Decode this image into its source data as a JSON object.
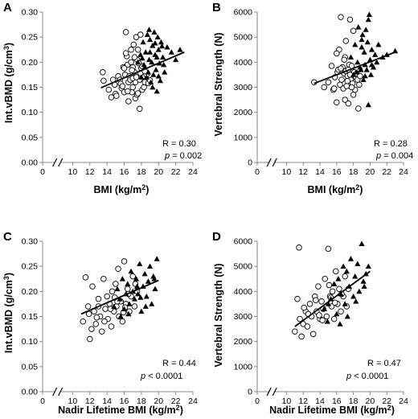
{
  "panels": [
    {
      "letter": "A",
      "ylabel_main": "Int.vBMD  (g/cm",
      "ylabel_sup": "3",
      "ylabel_end": ")",
      "xlabel_main": "BMI (kg/m",
      "xlabel_sup": "2",
      "xlabel_end": ")",
      "r_text": "R = 0.30",
      "p_symbol": "p",
      "p_text": " = 0.002",
      "y_ticks": [
        "0.00",
        "0.05",
        "0.10",
        "0.15",
        "0.20",
        "0.25",
        "0.30"
      ],
      "x_ticks": [
        "0",
        "10",
        "12",
        "14",
        "16",
        "18",
        "20",
        "22",
        "24"
      ]
    },
    {
      "letter": "B",
      "ylabel_main": "Vertebral Strength (N)",
      "ylabel_sup": "",
      "ylabel_end": "",
      "xlabel_main": "BMI (kg/m",
      "xlabel_sup": "2",
      "xlabel_end": ")",
      "r_text": "R = 0.28",
      "p_symbol": "p",
      "p_text": " = 0.004",
      "y_ticks": [
        "0",
        "1000",
        "2000",
        "3000",
        "4000",
        "5000",
        "6000"
      ],
      "x_ticks": [
        "0",
        "10",
        "12",
        "14",
        "16",
        "18",
        "20",
        "22",
        "24"
      ]
    },
    {
      "letter": "C",
      "ylabel_main": "Int.vBMD  (g/cm",
      "ylabel_sup": "3",
      "ylabel_end": ")",
      "xlabel_main": "Nadir Lifetime BMI (kg/m",
      "xlabel_sup": "2",
      "xlabel_end": ")",
      "r_text": "R = 0.44",
      "p_symbol": "p",
      "p_text": " < 0.0001",
      "y_ticks": [
        "0.00",
        "0.05",
        "0.10",
        "0.15",
        "0.20",
        "0.25",
        "0.30"
      ],
      "x_ticks": [
        "0",
        "10",
        "12",
        "14",
        "16",
        "18",
        "20",
        "22",
        "24"
      ]
    },
    {
      "letter": "D",
      "ylabel_main": "Vertebral Strength (N)",
      "ylabel_sup": "",
      "ylabel_end": "",
      "xlabel_main": "Nadir Lifetime BMI (kg/m",
      "xlabel_sup": "2",
      "xlabel_end": ")",
      "r_text": "R = 0.47",
      "p_symbol": "p",
      "p_text": " < 0.0001",
      "y_ticks": [
        "0",
        "1000",
        "2000",
        "3000",
        "4000",
        "5000",
        "6000"
      ],
      "x_ticks": [
        "0",
        "10",
        "12",
        "14",
        "16",
        "18",
        "20",
        "22",
        "24"
      ]
    }
  ],
  "chart_data": [
    {
      "type": "scatter",
      "panel": "A",
      "title": "",
      "xlabel": "BMI (kg/m2)",
      "ylabel": "Int.vBMD  (g/cm3)",
      "xlim": [
        0,
        24
      ],
      "x_axis_break": [
        0,
        10
      ],
      "ylim": [
        0,
        0.3
      ],
      "grid": false,
      "annotation": {
        "R": 0.3,
        "p": "= 0.002"
      },
      "trendline": {
        "x": [
          13.3,
          23.0
        ],
        "y": [
          0.149,
          0.22
        ]
      },
      "series": [
        {
          "marker": "open-circle",
          "x": [
            13.5,
            13.6,
            14.2,
            14.5,
            14.7,
            14.9,
            15.0,
            15.1,
            15.3,
            15.5,
            15.6,
            15.7,
            15.9,
            16.0,
            16.1,
            16.2,
            16.3,
            16.4,
            16.5,
            16.5,
            16.6,
            16.7,
            16.8,
            16.9,
            17.0,
            17.0,
            17.1,
            17.2,
            17.3,
            17.3,
            17.4,
            17.5,
            17.5,
            17.6,
            17.7,
            17.8,
            17.8,
            17.9,
            18.0,
            18.1,
            18.2,
            18.3,
            18.4,
            18.6,
            18.8,
            19.0,
            16.2,
            16.8,
            17.6,
            17.9,
            15.8,
            16.9,
            17.2,
            18.1,
            16.4,
            17.0,
            17.7,
            18.4,
            16.0,
            17.4
          ],
          "y": [
            0.18,
            0.163,
            0.145,
            0.13,
            0.165,
            0.155,
            0.137,
            0.133,
            0.172,
            0.165,
            0.157,
            0.148,
            0.19,
            0.14,
            0.175,
            0.26,
            0.212,
            0.195,
            0.16,
            0.122,
            0.172,
            0.165,
            0.225,
            0.14,
            0.19,
            0.15,
            0.235,
            0.18,
            0.16,
            0.128,
            0.25,
            0.205,
            0.135,
            0.225,
            0.175,
            0.165,
            0.107,
            0.255,
            0.188,
            0.145,
            0.172,
            0.15,
            0.16,
            0.175,
            0.158,
            0.164,
            0.218,
            0.2,
            0.138,
            0.178,
            0.152,
            0.184,
            0.21,
            0.192,
            0.142,
            0.168,
            0.198,
            0.182,
            0.188,
            0.17
          ]
        },
        {
          "marker": "filled-triangle",
          "x": [
            17.6,
            17.9,
            18.0,
            18.2,
            18.3,
            18.5,
            18.6,
            18.7,
            18.8,
            18.9,
            19.0,
            19.1,
            19.2,
            19.3,
            19.4,
            19.5,
            19.6,
            19.7,
            19.8,
            19.9,
            20.0,
            20.1,
            20.2,
            20.3,
            20.5,
            20.7,
            21.0,
            21.5,
            22.0,
            22.5,
            18.4,
            18.9,
            19.3,
            19.6,
            20.0,
            20.4,
            18.1,
            19.0,
            19.8,
            20.6
          ],
          "y": [
            0.2,
            0.215,
            0.17,
            0.24,
            0.195,
            0.22,
            0.17,
            0.255,
            0.18,
            0.265,
            0.22,
            0.16,
            0.2,
            0.233,
            0.175,
            0.26,
            0.215,
            0.185,
            0.142,
            0.25,
            0.225,
            0.198,
            0.163,
            0.24,
            0.21,
            0.18,
            0.23,
            0.22,
            0.205,
            0.225,
            0.19,
            0.205,
            0.15,
            0.238,
            0.172,
            0.232,
            0.208,
            0.245,
            0.21,
            0.195
          ]
        }
      ]
    },
    {
      "type": "scatter",
      "panel": "B",
      "title": "",
      "xlabel": "BMI (kg/m2)",
      "ylabel": "Vertebral Strength (N)",
      "xlim": [
        0,
        24
      ],
      "x_axis_break": [
        0,
        10
      ],
      "ylim": [
        0,
        6000
      ],
      "grid": false,
      "annotation": {
        "R": 0.28,
        "p": "= 0.004"
      },
      "trendline": {
        "x": [
          13.3,
          23.0
        ],
        "y": [
          3150,
          4400
        ]
      },
      "series": [
        {
          "marker": "open-circle",
          "x": [
            13.3,
            14.5,
            15.0,
            15.4,
            15.6,
            15.8,
            16.0,
            16.1,
            16.3,
            16.4,
            16.5,
            16.6,
            16.7,
            16.8,
            16.9,
            17.0,
            17.0,
            17.1,
            17.2,
            17.3,
            17.4,
            17.5,
            17.6,
            17.7,
            17.8,
            17.9,
            18.0,
            18.1,
            18.2,
            18.3,
            18.4,
            18.5,
            18.6,
            18.8,
            16.2,
            16.9,
            17.3,
            17.8,
            15.7,
            16.5,
            17.1,
            17.6,
            18.0,
            16.0,
            17.4,
            18.7
          ],
          "y": [
            3200,
            3000,
            3200,
            3850,
            2900,
            3400,
            2400,
            3600,
            4500,
            3100,
            5800,
            3300,
            3800,
            2950,
            3550,
            4200,
            2500,
            3650,
            3050,
            3450,
            2350,
            3900,
            5700,
            3300,
            3850,
            3150,
            5250,
            3600,
            2900,
            3400,
            3550,
            3300,
            2150,
            3450,
            3700,
            4100,
            3250,
            3000,
            2950,
            3750,
            4850,
            3500,
            2700,
            4350,
            3700,
            3100
          ]
        },
        {
          "marker": "filled-triangle",
          "x": [
            17.7,
            18.0,
            18.2,
            18.4,
            18.6,
            18.8,
            19.0,
            19.1,
            19.2,
            19.3,
            19.4,
            19.5,
            19.6,
            19.7,
            19.8,
            19.9,
            20.0,
            20.1,
            20.2,
            20.4,
            20.6,
            20.8,
            21.0,
            21.5,
            22.0,
            23.0,
            18.5,
            19.0,
            19.4,
            19.8,
            20.2,
            18.9
          ],
          "y": [
            4200,
            3500,
            4700,
            3600,
            5400,
            3800,
            4600,
            5100,
            3300,
            4400,
            3900,
            5300,
            3700,
            4800,
            2300,
            5900,
            4100,
            3500,
            4500,
            3800,
            4300,
            4000,
            4700,
            4200,
            4300,
            4450,
            4000,
            4900,
            3450,
            5700,
            3900,
            3700
          ]
        }
      ]
    },
    {
      "type": "scatter",
      "panel": "C",
      "title": "",
      "xlabel": "Nadir Lifetime BMI (kg/m2)",
      "ylabel": "Int.vBMD  (g/cm3)",
      "xlim": [
        0,
        24
      ],
      "x_axis_break": [
        0,
        10
      ],
      "ylim": [
        0,
        0.3
      ],
      "grid": false,
      "annotation": {
        "R": 0.44,
        "p": "< 0.0001"
      },
      "trendline": {
        "x": [
          11.0,
          20.0
        ],
        "y": [
          0.155,
          0.222
        ]
      },
      "series": [
        {
          "marker": "open-circle",
          "x": [
            11.2,
            11.5,
            11.8,
            12.0,
            12.3,
            12.5,
            12.7,
            13.0,
            13.2,
            13.4,
            13.6,
            13.8,
            14.0,
            14.1,
            14.3,
            14.5,
            14.6,
            14.8,
            15.0,
            15.1,
            15.3,
            15.4,
            15.6,
            15.8,
            16.0,
            16.2,
            16.4,
            16.6,
            16.8,
            17.0,
            17.2,
            17.5,
            12.2,
            13.0,
            13.7,
            14.4,
            15.2,
            15.9,
            16.5,
            17.3,
            11.9,
            12.8,
            14.9,
            16.1
          ],
          "y": [
            0.14,
            0.228,
            0.17,
            0.105,
            0.21,
            0.16,
            0.135,
            0.185,
            0.15,
            0.12,
            0.225,
            0.165,
            0.19,
            0.145,
            0.175,
            0.13,
            0.2,
            0.16,
            0.215,
            0.17,
            0.245,
            0.15,
            0.18,
            0.14,
            0.26,
            0.175,
            0.205,
            0.16,
            0.19,
            0.23,
            0.17,
            0.2,
            0.125,
            0.17,
            0.14,
            0.165,
            0.18,
            0.158,
            0.195,
            0.215,
            0.155,
            0.148,
            0.188,
            0.168
          ]
        },
        {
          "marker": "filled-triangle",
          "x": [
            14.8,
            15.2,
            15.5,
            15.8,
            16.0,
            16.2,
            16.4,
            16.6,
            16.8,
            17.0,
            17.2,
            17.4,
            17.6,
            17.8,
            18.0,
            18.2,
            18.4,
            18.6,
            18.8,
            19.0,
            19.2,
            19.4,
            19.6,
            19.8,
            16.5,
            17.5,
            18.5,
            19.5,
            15.6,
            17.9
          ],
          "y": [
            0.17,
            0.205,
            0.185,
            0.225,
            0.165,
            0.195,
            0.215,
            0.175,
            0.24,
            0.2,
            0.185,
            0.225,
            0.195,
            0.255,
            0.16,
            0.21,
            0.235,
            0.19,
            0.22,
            0.25,
            0.175,
            0.23,
            0.205,
            0.265,
            0.155,
            0.21,
            0.17,
            0.225,
            0.15,
            0.188
          ]
        }
      ]
    },
    {
      "type": "scatter",
      "panel": "D",
      "title": "",
      "xlabel": "Nadir Lifetime BMI (kg/m2)",
      "ylabel": "Vertebral Strength (N)",
      "xlim": [
        0,
        24
      ],
      "x_axis_break": [
        0,
        10
      ],
      "ylim": [
        0,
        6000
      ],
      "grid": false,
      "annotation": {
        "R": 0.47,
        "p": "< 0.0001"
      },
      "trendline": {
        "x": [
          11.0,
          20.0
        ],
        "y": [
          2600,
          4800
        ]
      },
      "series": [
        {
          "marker": "open-circle",
          "x": [
            11.0,
            11.3,
            11.5,
            11.8,
            12.0,
            12.3,
            12.5,
            12.8,
            13.0,
            13.2,
            13.4,
            13.6,
            13.8,
            14.0,
            14.2,
            14.4,
            14.6,
            14.8,
            15.0,
            15.2,
            15.4,
            15.5,
            15.7,
            15.9,
            16.1,
            16.3,
            16.5,
            16.8,
            17.0,
            17.2,
            11.6,
            12.6,
            13.5,
            14.3,
            15.1,
            15.8,
            16.6,
            17.4,
            12.1,
            13.9,
            15.3
          ],
          "y": [
            2400,
            3700,
            5750,
            2200,
            2700,
            3200,
            2600,
            3500,
            3000,
            2300,
            3800,
            3200,
            4200,
            2900,
            3600,
            3300,
            4500,
            3000,
            5700,
            3800,
            3400,
            4000,
            2900,
            4800,
            3500,
            4100,
            3200,
            3800,
            4600,
            3400,
            2900,
            3100,
            3650,
            2850,
            4250,
            3550,
            3900,
            4100,
            3350,
            3050,
            3750
          ]
        },
        {
          "marker": "filled-triangle",
          "x": [
            14.5,
            14.9,
            15.3,
            15.7,
            16.0,
            16.2,
            16.5,
            16.8,
            17.0,
            17.2,
            17.5,
            17.7,
            18.0,
            18.2,
            18.5,
            18.7,
            19.0,
            19.2,
            19.5,
            19.8,
            16.4,
            17.3,
            18.3,
            19.3,
            15.0
          ],
          "y": [
            3300,
            2800,
            3700,
            4300,
            3100,
            4500,
            3900,
            5000,
            3500,
            4800,
            4200,
            5300,
            3800,
            4600,
            5100,
            4000,
            5900,
            4400,
            4700,
            5000,
            2700,
            3000,
            3600,
            4200,
            3500
          ]
        }
      ]
    }
  ]
}
